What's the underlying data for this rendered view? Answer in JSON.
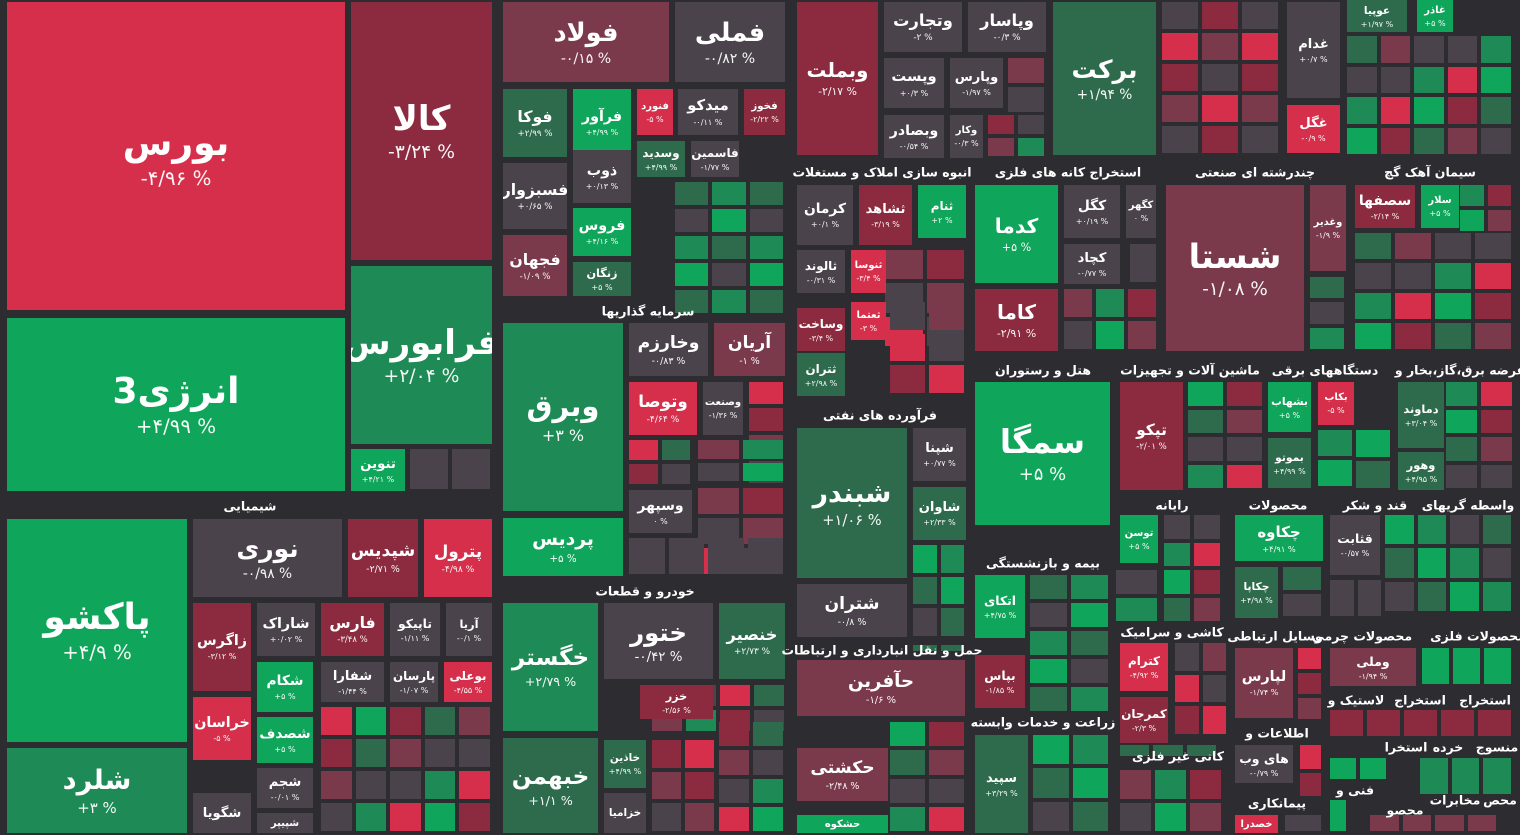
{
  "sectors": [
    {
      "tiles": [
        {
          "name": "بورس",
          "change": "-۴/۹۶ %",
          "color": "#d62f4b"
        },
        {
          "name": "کالا",
          "change": "-۳/۲۴ %",
          "color": "#8c2b3f"
        },
        {
          "name": "انرژی3",
          "change": "+۴/۹۹ %",
          "color": "#0fa55a"
        },
        {
          "name": "فرابورس",
          "change": "+۲/۰۴ %",
          "color": "#1e8a55"
        },
        {
          "name": "تنوین",
          "change": "+۴/۲۱ %",
          "color": "#0fa55a"
        },
        {
          "name": "فولاد",
          "change": "-۰/۱۵ %",
          "color": "#7a3a4b"
        },
        {
          "name": "فملی",
          "change": "-۰/۸۲ %",
          "color": "#4a434b"
        },
        {
          "name": "فوکا",
          "change": "+۲/۹۹ %",
          "color": "#2e6b4c"
        },
        {
          "name": "فرآور",
          "change": "+۴/۹۹ %",
          "color": "#0fa55a"
        },
        {
          "name": "فنورد",
          "change": "-۵ %",
          "color": "#d62f4b"
        },
        {
          "name": "میدکو",
          "change": "-۰/۱۱ %",
          "color": "#4a434b"
        },
        {
          "name": "فخوز",
          "change": "-۲/۲۲ %",
          "color": "#8c2b3f"
        },
        {
          "name": "وسدید",
          "change": "+۴/۹۹ %",
          "color": "#2e6b4c"
        },
        {
          "name": "فاسمین",
          "change": "-۱/۷۷ %",
          "color": "#4a434b"
        },
        {
          "name": "فسبزوار",
          "change": "+۰/۶۵ %",
          "color": "#4a434b"
        },
        {
          "name": "ذوب",
          "change": "+۰/۱۳ %",
          "color": "#4a434b"
        },
        {
          "name": "فروس",
          "change": "+۴/۱۶ %",
          "color": "#0fa55a"
        },
        {
          "name": "فجهان",
          "change": "-۱/۰۹ %",
          "color": "#7a3a4b"
        },
        {
          "name": "زنگان",
          "change": "+۵ %",
          "color": "#2e6b4c"
        },
        {
          "name": "وبملت",
          "change": "-۲/۱۷ %",
          "color": "#8c2b3f"
        },
        {
          "name": "وتجارت",
          "change": "-۲ %",
          "color": "#4a434b"
        },
        {
          "name": "وپاسار",
          "change": "-۰/۳ %",
          "color": "#4a434b"
        },
        {
          "name": "وپست",
          "change": "+۰/۳ %",
          "color": "#4a434b"
        },
        {
          "name": "وپارس",
          "change": "-۱/۹۷ %",
          "color": "#4a434b"
        },
        {
          "name": "وبصادر",
          "change": "-۰/۵۴ %",
          "color": "#4a434b"
        },
        {
          "name": "وکار",
          "change": "-۰/۳ %",
          "color": "#4a434b"
        },
        {
          "name": "برکت",
          "change": "+۱/۹۴ %",
          "color": "#2e6b4c"
        },
        {
          "name": "غدام",
          "change": "+۰/۷ %",
          "color": "#4a434b"
        },
        {
          "name": "غگل",
          "change": "-۰/۹ %",
          "color": "#d62f4b"
        },
        {
          "name": "عوپیا",
          "change": "+۱/۹۷ %",
          "color": "#2e6b4c"
        },
        {
          "name": "غاذر",
          "change": "+۵ %",
          "color": "#0fa55a"
        }
      ]
    },
    {
      "title": "شیمیایی",
      "tiles": [
        {
          "name": "پاکشو",
          "change": "+۴/۹ %",
          "color": "#0fa55a"
        },
        {
          "name": "شلرد",
          "change": "+۳ %",
          "color": "#1e8a55"
        },
        {
          "name": "نوری",
          "change": "-۰/۹۸ %",
          "color": "#4a434b"
        },
        {
          "name": "شپدیس",
          "change": "-۲/۷۱ %",
          "color": "#8c2b3f"
        },
        {
          "name": "پترول",
          "change": "-۴/۹۸ %",
          "color": "#d62f4b"
        },
        {
          "name": "زاگرس",
          "change": "-۳/۱۲ %",
          "color": "#8c2b3f"
        },
        {
          "name": "خراسان",
          "change": "-۵ %",
          "color": "#d62f4b"
        },
        {
          "name": "شگویا",
          "color": "#4a434b"
        },
        {
          "name": "شاراک",
          "change": "+۰/۰۲ %",
          "color": "#4a434b"
        },
        {
          "name": "فارس",
          "change": "-۳/۴۸ %",
          "color": "#8c2b3f"
        },
        {
          "name": "تاپیکو",
          "change": "-۱/۱۱ %",
          "color": "#4a434b"
        },
        {
          "name": "آریا",
          "change": "-۰/۱ %",
          "color": "#4a434b"
        },
        {
          "name": "شکام",
          "change": "+۵ %",
          "color": "#0fa55a"
        },
        {
          "name": "شفارا",
          "change": "-۱/۴۴ %",
          "color": "#4a434b"
        },
        {
          "name": "پارسان",
          "change": "-۱/۰۷ %",
          "color": "#4a434b"
        },
        {
          "name": "بوعلی",
          "change": "-۴/۵۵ %",
          "color": "#d62f4b"
        },
        {
          "name": "شصدف",
          "change": "+۵ %",
          "color": "#0fa55a"
        },
        {
          "name": "شجم",
          "change": "-۰/۰۱ %",
          "color": "#4a434b"
        },
        {
          "name": "شپیپر",
          "color": "#4a434b"
        }
      ]
    },
    {
      "title": "سرمایه گذاریها",
      "tiles": [
        {
          "name": "وبرق",
          "change": "+۳ %",
          "color": "#1e8a55"
        },
        {
          "name": "وخارزم",
          "change": "-۰/۸۳ %",
          "color": "#4a434b"
        },
        {
          "name": "آریان",
          "change": "-۱ %",
          "color": "#7a3a4b"
        },
        {
          "name": "وتوصا",
          "change": "-۴/۶۴ %",
          "color": "#d62f4b"
        },
        {
          "name": "وصنعت",
          "change": "-۱/۳۶ %",
          "color": "#4a434b"
        },
        {
          "name": "وسپهر",
          "change": "۰ %",
          "color": "#4a434b"
        },
        {
          "name": "پردیس",
          "change": "+۵ %",
          "color": "#0fa55a"
        }
      ]
    },
    {
      "title": "خودرو و قطعات",
      "tiles": [
        {
          "name": "خگستر",
          "change": "+۲/۷۹ %",
          "color": "#1e8a55"
        },
        {
          "name": "ختور",
          "change": "-۰/۴۲ %",
          "color": "#4a434b"
        },
        {
          "name": "خنصیر",
          "change": "+۲/۷۳ %",
          "color": "#2e6b4c"
        },
        {
          "name": "خزر",
          "change": "-۲/۵۶ %",
          "color": "#8c2b3f"
        },
        {
          "name": "خاذین",
          "change": "+۴/۹۹ %",
          "color": "#2e6b4c"
        },
        {
          "name": "خبهمن",
          "change": "+۱/۱ %",
          "color": "#2e6b4c"
        },
        {
          "name": "خزامیا",
          "color": "#4a434b"
        }
      ]
    },
    {
      "title": "انبوه سازی املاک و مستغلات",
      "tiles": [
        {
          "name": "کرمان",
          "change": "+۰/۱ %",
          "color": "#4a434b"
        },
        {
          "name": "ثشاهد",
          "change": "-۳/۱۹ %",
          "color": "#8c2b3f"
        },
        {
          "name": "ثنام",
          "change": "+۲ %",
          "color": "#0fa55a"
        },
        {
          "name": "ثالوند",
          "change": "-۰/۳۱ %",
          "color": "#4a434b"
        },
        {
          "name": "ثنوسا",
          "change": "-۳/۴ %",
          "color": "#d62f4b"
        },
        {
          "name": "وساخت",
          "change": "-۳/۴ %",
          "color": "#8c2b3f"
        },
        {
          "name": "ثعتما",
          "change": "-۳ %",
          "color": "#d62f4b"
        },
        {
          "name": "ثتران",
          "change": "+۲/۹۸ %",
          "color": "#2e6b4c"
        }
      ]
    },
    {
      "title": "استخراج کانه های فلزی",
      "tiles": [
        {
          "name": "کدما",
          "change": "+۵ %",
          "color": "#0fa55a"
        },
        {
          "name": "کگل",
          "change": "+۰/۱۹ %",
          "color": "#4a434b"
        },
        {
          "name": "کگهر",
          "change": "۰ %",
          "color": "#4a434b"
        },
        {
          "name": "کچاد",
          "change": "-۰/۷۷ %",
          "color": "#4a434b"
        },
        {
          "name": "کاما",
          "change": "-۲/۹۱ %",
          "color": "#8c2b3f"
        }
      ]
    },
    {
      "title": "چندرشته ای صنعتی",
      "tiles": [
        {
          "name": "شستا",
          "change": "-۱/۰۸ %",
          "color": "#7a3a4b"
        },
        {
          "name": "وغدیر",
          "change": "-۱/۹ %",
          "color": "#7a3a4b"
        }
      ]
    },
    {
      "title": "سیمان آهک گچ",
      "tiles": [
        {
          "name": "سصفها",
          "change": "-۲/۱۴ %",
          "color": "#8c2b3f"
        },
        {
          "name": "سلار",
          "change": "+۵ %",
          "color": "#0fa55a"
        }
      ]
    },
    {
      "title": "فرآورده های نفتی",
      "tiles": [
        {
          "name": "شبندر",
          "change": "+۱/۰۶ %",
          "color": "#2e6b4c"
        },
        {
          "name": "شپنا",
          "change": "+۰/۷۷ %",
          "color": "#4a434b"
        },
        {
          "name": "شاوان",
          "change": "+۲/۳۳ %",
          "color": "#2e6b4c"
        },
        {
          "name": "شتران",
          "change": "-۰/۸ %",
          "color": "#4a434b"
        }
      ]
    },
    {
      "title": "هتل و رستوران",
      "tiles": [
        {
          "name": "سمگا",
          "change": "+۵ %",
          "color": "#0fa55a"
        }
      ]
    },
    {
      "title": "ماشین آلات و تجهیزات",
      "tiles": [
        {
          "name": "تپکو",
          "change": "-۲/۰۱ %",
          "color": "#8c2b3f"
        }
      ]
    },
    {
      "title": "دستگاههای برقی",
      "tiles": [
        {
          "name": "بشهاب",
          "change": "+۵ %",
          "color": "#0fa55a"
        },
        {
          "name": "بکاب",
          "change": "-۵ %",
          "color": "#d62f4b"
        },
        {
          "name": "بموتو",
          "change": "+۴/۹۹ %",
          "color": "#2e6b4c"
        }
      ]
    },
    {
      "title": "عرضه برق،گاز،بخار و",
      "tiles": [
        {
          "name": "دماوند",
          "change": "+۳/۰۴ %",
          "color": "#2e6b4c"
        },
        {
          "name": "وهور",
          "change": "+۴/۹۵ %",
          "color": "#2e6b4c"
        }
      ]
    },
    {
      "title": "حمل و نقل انبارداری و ارتباطات",
      "tiles": [
        {
          "name": "حآفرین",
          "change": "-۱/۶ %",
          "color": "#7a3a4b"
        },
        {
          "name": "حکشتی",
          "change": "-۲/۴۸ %",
          "color": "#7a3a4b"
        },
        {
          "name": "حشکوه",
          "color": "#0fa55a"
        }
      ]
    },
    {
      "title": "بیمه و بازنشستگی",
      "tiles": [
        {
          "name": "اتکای",
          "change": "+۴/۷۵ %",
          "color": "#0fa55a"
        },
        {
          "name": "بپاس",
          "change": "-۱/۸۵ %",
          "color": "#8c2b3f"
        }
      ]
    },
    {
      "title": "زراعت و خدمات وابسته",
      "tiles": [
        {
          "name": "سپید",
          "change": "+۳/۲۹ %",
          "color": "#2e6b4c"
        }
      ]
    },
    {
      "title": "رایانه",
      "tiles": [
        {
          "name": "توسن",
          "change": "+۵ %",
          "color": "#0fa55a"
        }
      ]
    },
    {
      "title": "کاشی و سرامیک",
      "tiles": [
        {
          "name": "کترام",
          "change": "-۴/۹۲ %",
          "color": "#d62f4b"
        },
        {
          "name": "کمرجان",
          "change": "-۲/۳ %",
          "color": "#8c2b3f"
        }
      ]
    },
    {
      "title": "محصولات",
      "tiles": [
        {
          "name": "چکاوه",
          "change": "+۴/۹۱ %",
          "color": "#0fa55a"
        },
        {
          "name": "چکاپا",
          "change": "+۴/۹۸ %",
          "color": "#2e6b4c"
        }
      ]
    },
    {
      "title": "قند و شکر",
      "tiles": [
        {
          "name": "قثابت",
          "change": "-۰/۵۷ %",
          "color": "#4a434b"
        }
      ]
    },
    {
      "title": "واسطه گریهای",
      "tiles": []
    },
    {
      "title": "وسایل ارتباطی",
      "tiles": [
        {
          "name": "لپارس",
          "change": "-۱/۷۴ %",
          "color": "#7a3a4b"
        }
      ]
    },
    {
      "title": "محصولات چرمی",
      "tiles": [
        {
          "name": "وملی",
          "change": "-۱/۹۴ %",
          "color": "#7a3a4b"
        }
      ]
    },
    {
      "title": "محصولات فلزی",
      "tiles": []
    },
    {
      "title": "اطلاعات و",
      "tiles": [
        {
          "name": "های وب",
          "change": "-۰/۷۹ %",
          "color": "#4a434b"
        }
      ]
    },
    {
      "title": "کانی غیر فلزی",
      "tiles": []
    },
    {
      "title": "پیمانکاری",
      "tiles": [
        {
          "name": "خصدرا",
          "color": "#d62f4b"
        }
      ]
    },
    {
      "title": "لاستیک و",
      "tiles": []
    },
    {
      "title": "استخراج",
      "tiles": []
    },
    {
      "title": "استخراج",
      "tiles": []
    },
    {
      "title": "منسوج",
      "tiles": []
    },
    {
      "title": "خرده",
      "tiles": []
    },
    {
      "title": "استخرا",
      "tiles": []
    },
    {
      "title": "فنی و",
      "tiles": []
    },
    {
      "title": "محصو",
      "tiles": []
    },
    {
      "title": "مخابرات",
      "tiles": []
    },
    {
      "title": "محص",
      "tiles": []
    }
  ]
}
